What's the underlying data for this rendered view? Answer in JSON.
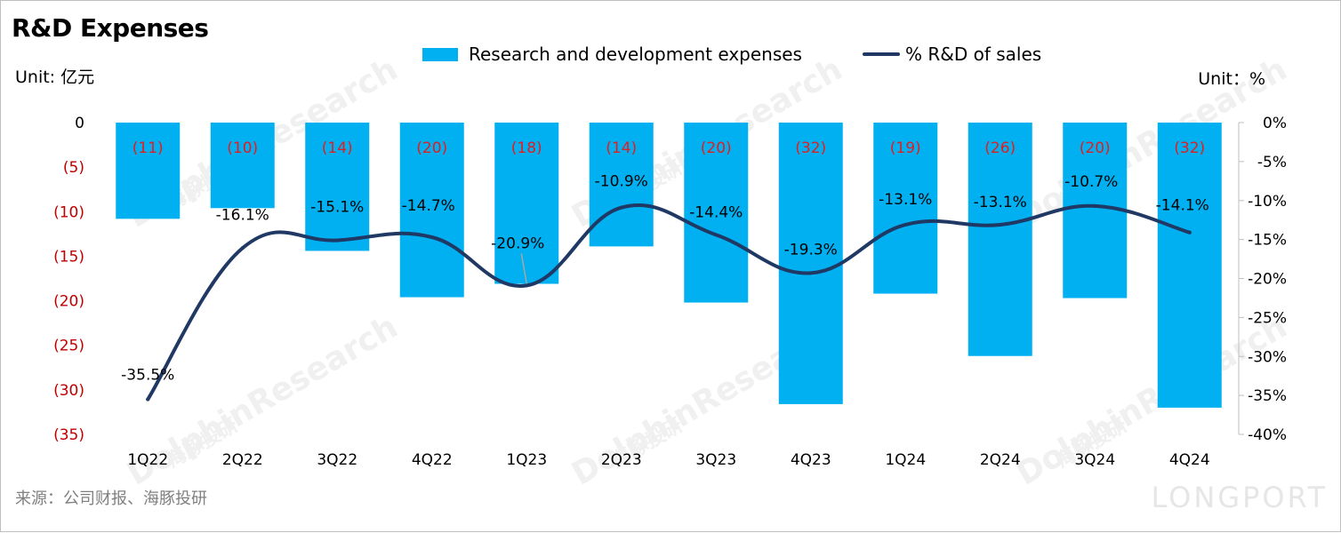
{
  "title": "R&D Expenses",
  "unit_left": "Unit: 亿元",
  "unit_right": "Unit：%",
  "source": "来源：公司财报、海豚投研",
  "watermark": {
    "text": "DolphinResearch",
    "cn": "海豚投研",
    "logo": "LONGPORT"
  },
  "legend": {
    "bar": "Research and development expenses",
    "line": "% R&D of sales"
  },
  "colors": {
    "bar": "#00b0f0",
    "line": "#1f3864",
    "bar_label": "#e01f1f",
    "left_tick": "#c00000"
  },
  "chart_data": {
    "type": "bar",
    "title": "R&D Expenses",
    "categories": [
      "1Q22",
      "2Q22",
      "3Q22",
      "4Q22",
      "1Q23",
      "2Q23",
      "3Q23",
      "4Q23",
      "1Q24",
      "2Q24",
      "3Q24",
      "4Q24"
    ],
    "series": [
      {
        "name": "Research and development expenses",
        "type": "bar",
        "axis": "left",
        "values": [
          -10.8,
          -9.6,
          -14.4,
          -19.6,
          -18.1,
          -13.9,
          -20.2,
          -31.6,
          -19.2,
          -26.2,
          -19.7,
          -32.0
        ],
        "labels": [
          "(11)",
          "(10)",
          "(14)",
          "(20)",
          "(18)",
          "(14)",
          "(20)",
          "(32)",
          "(19)",
          "(26)",
          "(20)",
          "(32)"
        ]
      },
      {
        "name": "% R&D of sales",
        "type": "line",
        "axis": "right",
        "values": [
          -35.5,
          -16.1,
          -15.1,
          -14.7,
          -20.9,
          -10.9,
          -14.4,
          -19.3,
          -13.1,
          -13.1,
          -10.7,
          -14.1
        ],
        "labels": [
          "-35.5%",
          "-16.1%",
          "-15.1%",
          "-14.7%",
          "-20.9%",
          "-10.9%",
          "-14.4%",
          "-19.3%",
          "-13.1%",
          "-13.1%",
          "-10.7%",
          "-14.1%"
        ]
      }
    ],
    "left_axis": {
      "ylim": [
        -35,
        0
      ],
      "ticks": [
        "0",
        "(5)",
        "(10)",
        "(15)",
        "(20)",
        "(25)",
        "(30)",
        "(35)"
      ]
    },
    "right_axis": {
      "ylim": [
        -40,
        0
      ],
      "ticks": [
        "0%",
        "-5%",
        "-10%",
        "-15%",
        "-20%",
        "-25%",
        "-30%",
        "-35%",
        "-40%"
      ]
    },
    "grid": false,
    "legend_position": "top-center"
  }
}
